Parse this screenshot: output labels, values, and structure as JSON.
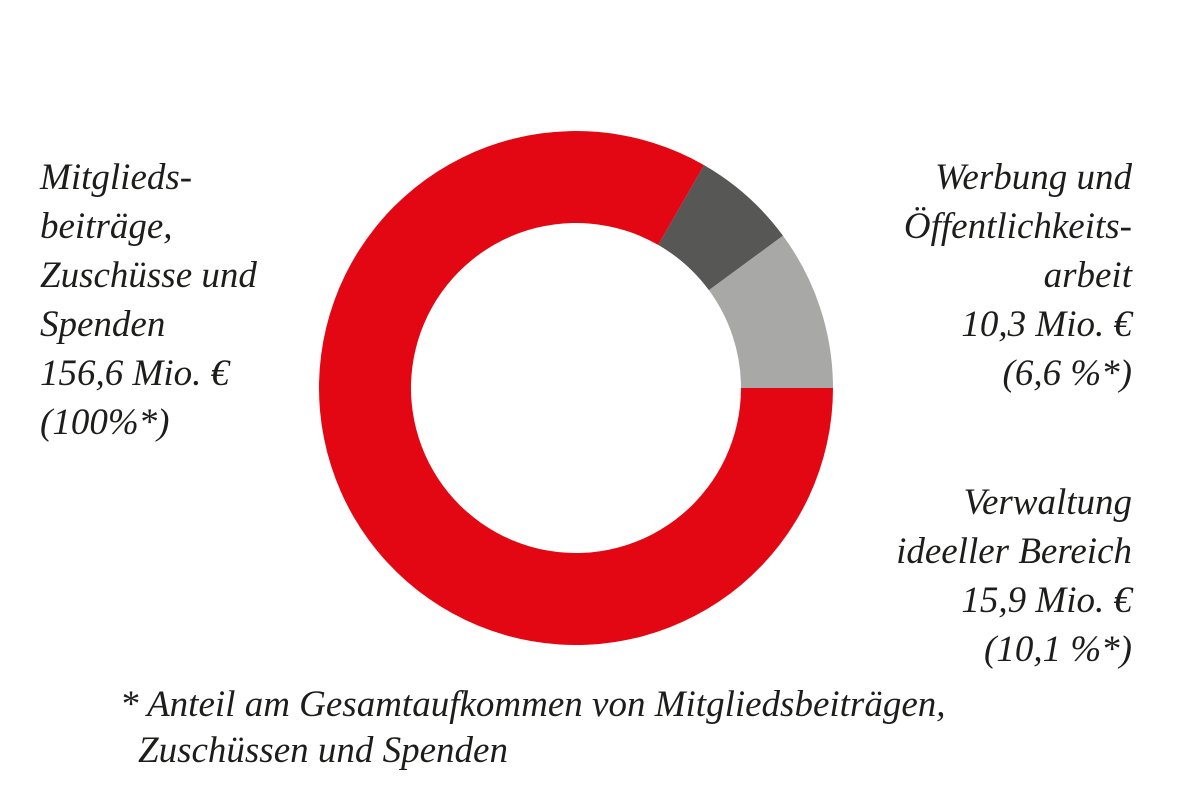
{
  "chart_data": {
    "type": "pie",
    "subtype": "donut",
    "total": {
      "label_lines": [
        "Mitglieds-",
        "beiträge,",
        "Zuschüsse und",
        "Spenden",
        "156,6 Mio. €",
        "(100%*)"
      ],
      "value": 156.6,
      "percent": 100
    },
    "slices": [
      {
        "name": "Verwaltung ideeller Bereich",
        "value": 15.9,
        "percent": 10.1,
        "color": "#a8a8a7",
        "label_lines": [
          "Verwaltung",
          "ideeller Bereich",
          "15,9 Mio. €",
          "(10,1 %*)"
        ]
      },
      {
        "name": "Werbung und Öffentlichkeitsarbeit",
        "value": 10.3,
        "percent": 6.6,
        "color": "#575756",
        "label_lines": [
          "Werbung und",
          "Öffentlichkeits-",
          "arbeit",
          "10,3 Mio. €",
          "(6,6 %*)"
        ]
      }
    ],
    "base_color": "#e30613",
    "footnote_lines": [
      "* Anteil am Gesamtaufkommen von Mitgliedsbeiträgen,",
      "  Zuschüssen und Spenden"
    ]
  }
}
